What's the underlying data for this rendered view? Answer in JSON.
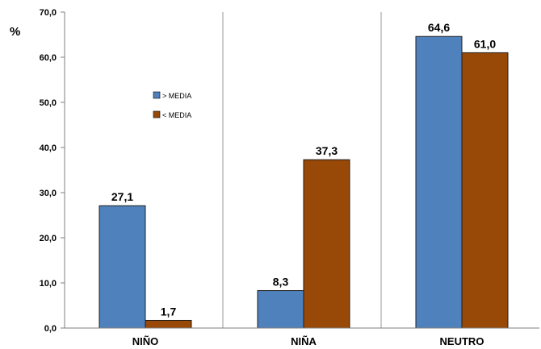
{
  "chart_data": {
    "type": "bar",
    "categories": [
      "NIÑO",
      "NIÑA",
      "NEUTRO"
    ],
    "series": [
      {
        "name": "> MEDIA",
        "values": [
          27.1,
          8.3,
          64.6
        ],
        "color": "#4f81bd"
      },
      {
        "name": "< MEDIA",
        "values": [
          1.7,
          37.3,
          61.0
        ],
        "color": "#984807"
      }
    ],
    "data_labels": [
      [
        "27,1",
        "8,3",
        "64,6"
      ],
      [
        "1,7",
        "37,3",
        "61,0"
      ]
    ],
    "ylabel": "%",
    "ylim": [
      0,
      70
    ],
    "yticks": [
      0,
      10,
      20,
      30,
      40,
      50,
      60,
      70
    ],
    "ytick_labels": [
      "0,0",
      "10,0",
      "20,0",
      "30,0",
      "40,0",
      "50,0",
      "60,0",
      "70,0"
    ],
    "grid": "vertical category separators",
    "legend_position": "top-left inside plot"
  }
}
